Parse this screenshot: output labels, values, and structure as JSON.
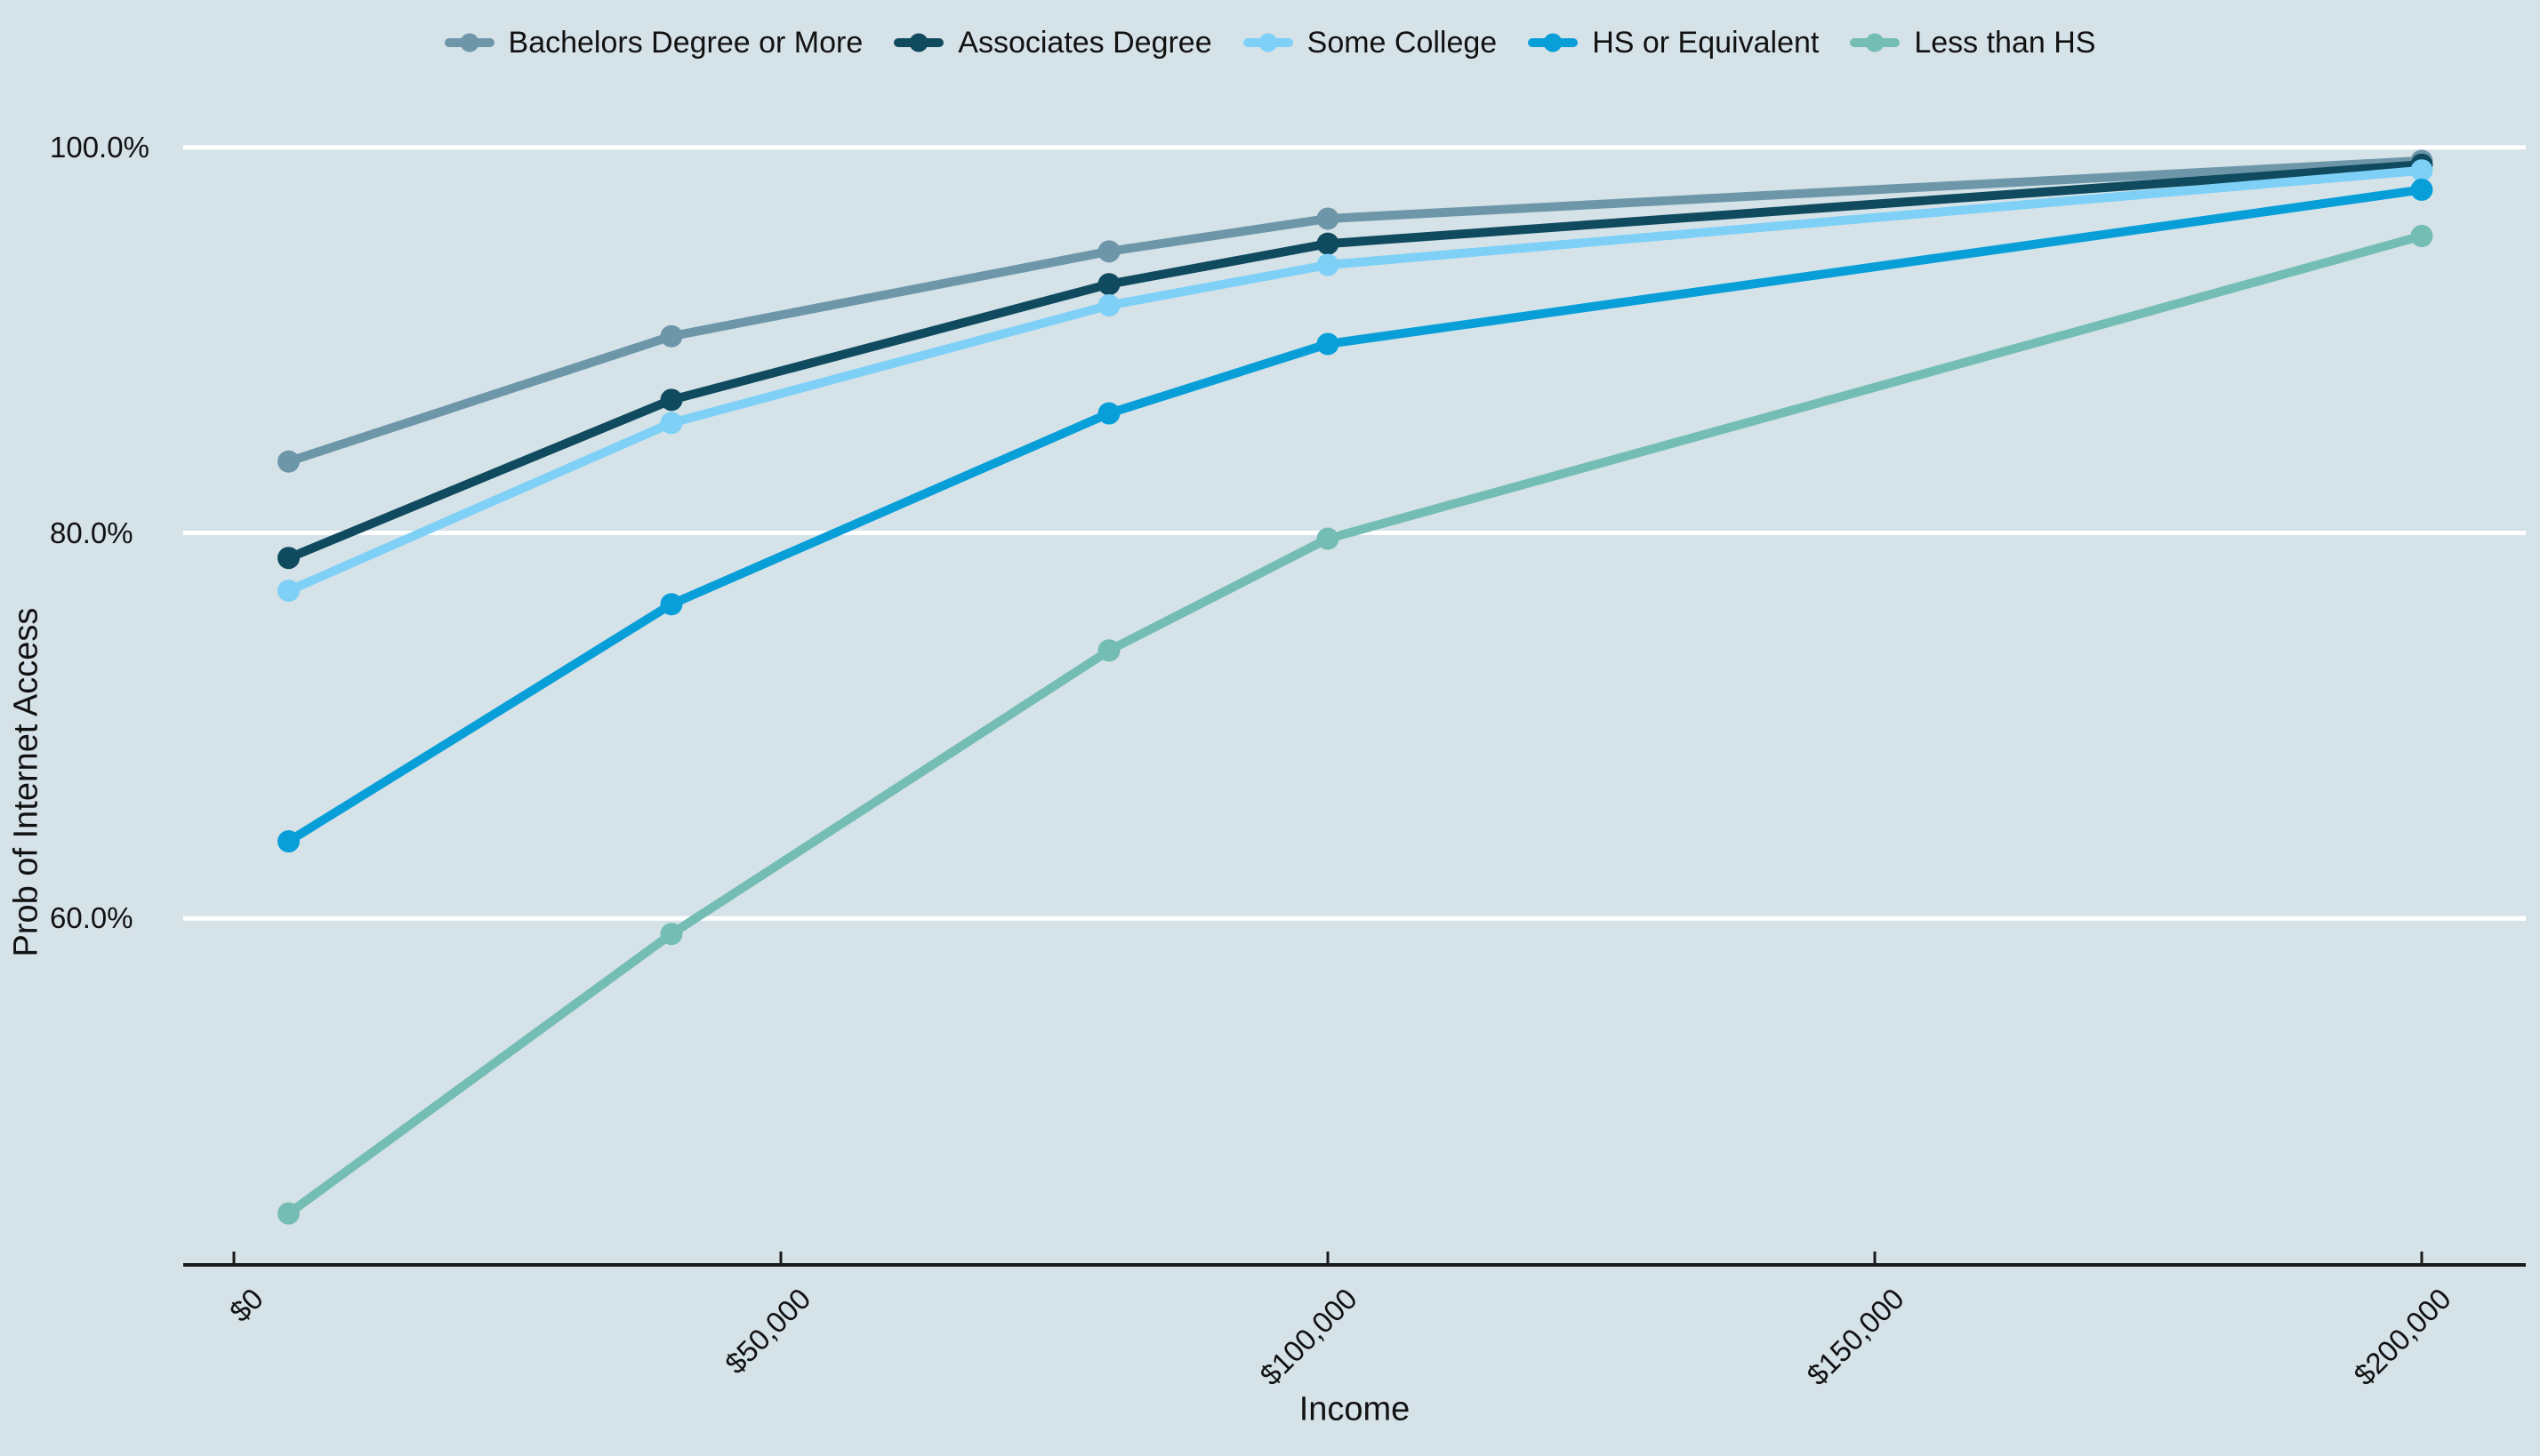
{
  "chart_data": {
    "type": "line",
    "title": "",
    "xlabel": "Income",
    "ylabel": "Prob of Internet Access",
    "x_values": [
      5000,
      40000,
      80000,
      100000,
      200000
    ],
    "series": [
      {
        "name": "Bachelors Degree or More",
        "color": "#6d97a9",
        "values": [
          83.7,
          90.2,
          94.6,
          96.3,
          99.3
        ]
      },
      {
        "name": "Associates Degree",
        "color": "#0f4a5e",
        "values": [
          78.7,
          86.9,
          92.9,
          95.0,
          99.1
        ]
      },
      {
        "name": "Some College",
        "color": "#7ed0f7",
        "values": [
          77.0,
          85.7,
          91.8,
          93.9,
          98.8
        ]
      },
      {
        "name": "HS or Equivalent",
        "color": "#089fd9",
        "values": [
          64.0,
          76.3,
          86.2,
          89.8,
          97.8
        ]
      },
      {
        "name": "Less than HS",
        "color": "#74bdb4",
        "values": [
          44.7,
          59.2,
          73.9,
          79.7,
          95.4
        ]
      }
    ],
    "y_ticks": [
      {
        "value": 100,
        "label": "100.0%"
      },
      {
        "value": 80,
        "label": "80.0%"
      },
      {
        "value": 60,
        "label": "60.0%"
      }
    ],
    "x_ticks": [
      {
        "value": 0,
        "label": "$0"
      },
      {
        "value": 50000,
        "label": "$50,000"
      },
      {
        "value": 100000,
        "label": "$100,000"
      },
      {
        "value": 150000,
        "label": "$150,000"
      },
      {
        "value": 200000,
        "label": "$200,000"
      }
    ],
    "ylim": [
      42,
      103
    ],
    "xlim": [
      0,
      200000
    ],
    "grid": "horizontal-only",
    "legend_position": "top-center",
    "colors": {
      "background": "#d5e2e8",
      "gridline": "#ffffff",
      "axis": "#1a1a1a",
      "text": "#111111"
    }
  }
}
